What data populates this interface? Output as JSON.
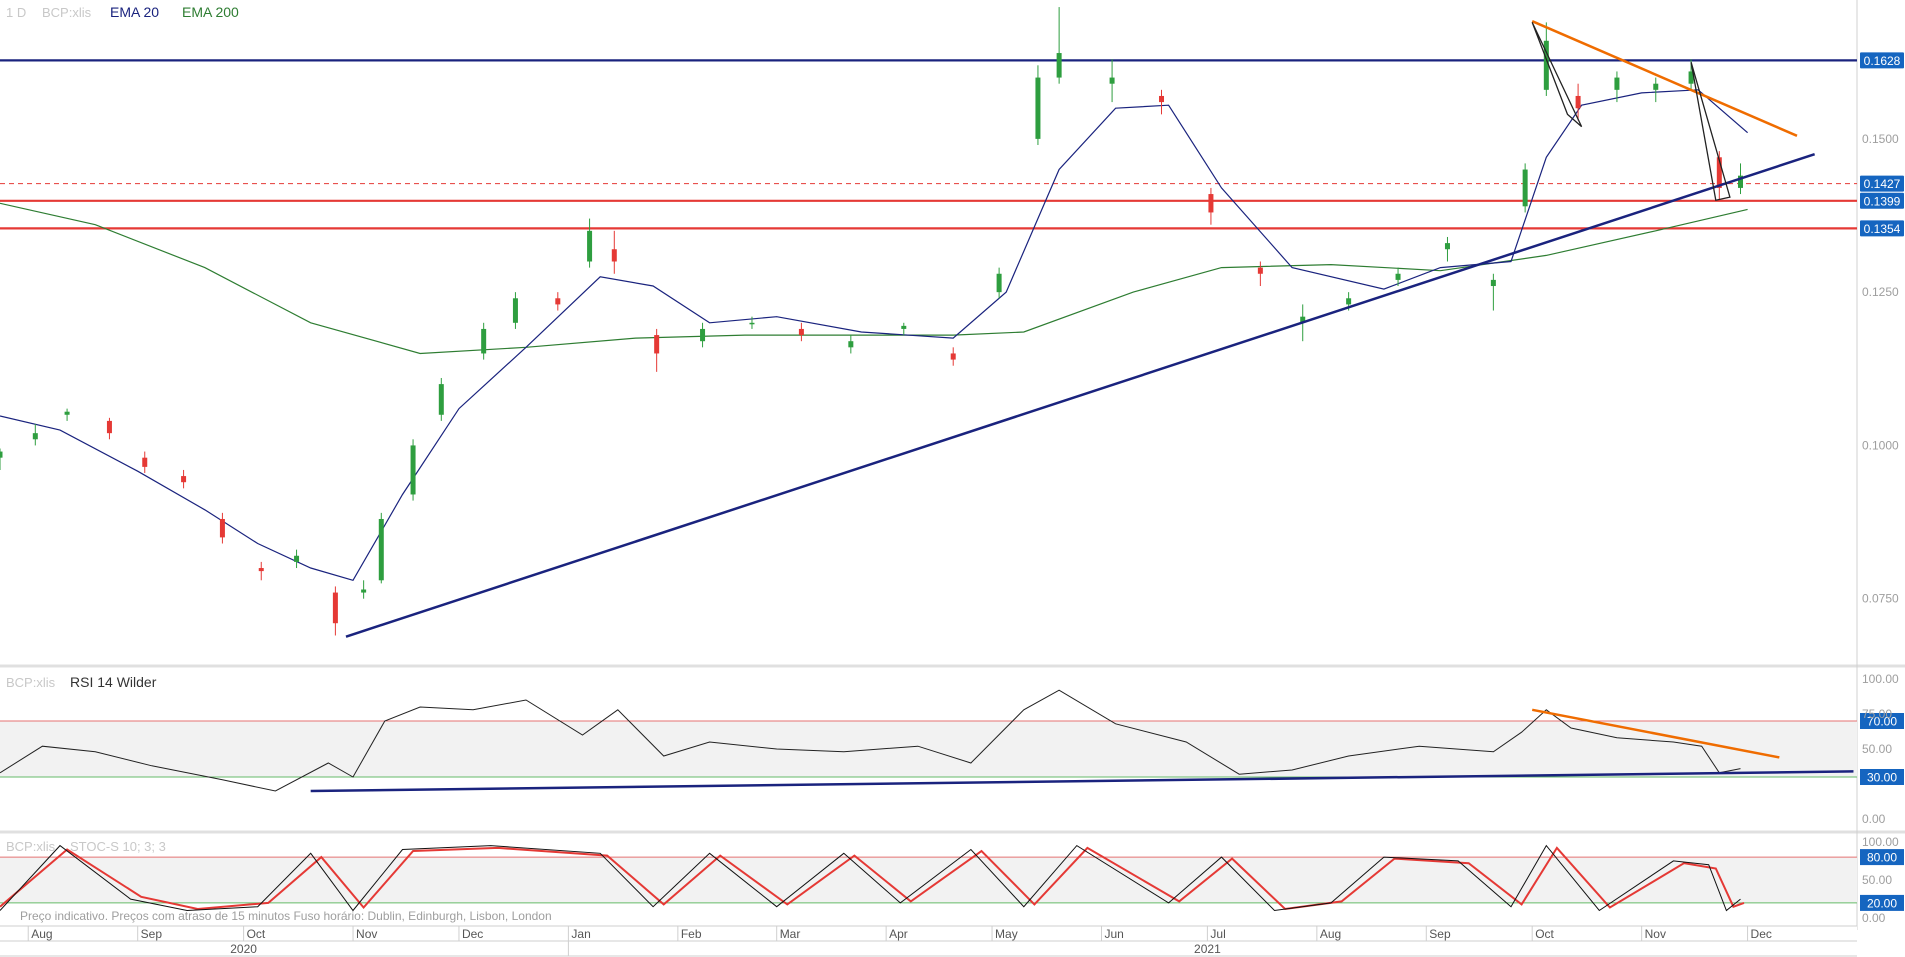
{
  "chart_data": {
    "type": "candlestick",
    "price_pane": {
      "legend": {
        "interval": "1 D",
        "symbol": "BCP:xlis",
        "ema20": "EMA 20",
        "ema200": "EMA 200"
      },
      "ylim": [
        0.065,
        0.172
      ],
      "y_ticks": [
        "0.1500",
        "0.1250",
        "0.1000",
        "0.0750"
      ],
      "levels": [
        {
          "label": "0.1628",
          "value": 0.1628,
          "color": "#1a237e",
          "style": "solid"
        },
        {
          "label": "0.1427",
          "value": 0.1427,
          "color": "#e53935",
          "style": "dashed"
        },
        {
          "label": "0.1399",
          "value": 0.1399,
          "color": "#e53935",
          "style": "solid"
        },
        {
          "label": "0.1354",
          "value": 0.1354,
          "color": "#e53935",
          "style": "solid"
        }
      ],
      "ema20": [
        [
          "2020-07-24",
          0.1048
        ],
        [
          "2020-08-10",
          0.1025
        ],
        [
          "2020-09-01",
          0.0958
        ],
        [
          "2020-09-20",
          0.0895
        ],
        [
          "2020-10-05",
          0.084
        ],
        [
          "2020-10-20",
          0.08
        ],
        [
          "2020-11-01",
          0.078
        ],
        [
          "2020-11-15",
          0.092
        ],
        [
          "2020-12-01",
          0.106
        ],
        [
          "2020-12-20",
          0.116
        ],
        [
          "2021-01-10",
          0.1275
        ],
        [
          "2021-01-25",
          0.126
        ],
        [
          "2021-02-10",
          0.12
        ],
        [
          "2021-03-01",
          0.121
        ],
        [
          "2021-03-25",
          0.1185
        ],
        [
          "2021-04-20",
          0.1175
        ],
        [
          "2021-05-05",
          0.125
        ],
        [
          "2021-05-20",
          0.145
        ],
        [
          "2021-06-05",
          0.155
        ],
        [
          "2021-06-20",
          0.1555
        ],
        [
          "2021-07-05",
          0.142
        ],
        [
          "2021-07-25",
          0.129
        ],
        [
          "2021-08-20",
          0.1255
        ],
        [
          "2021-09-05",
          0.129
        ],
        [
          "2021-09-25",
          0.13
        ],
        [
          "2021-10-05",
          0.147
        ],
        [
          "2021-10-15",
          0.1555
        ],
        [
          "2021-11-01",
          0.1575
        ],
        [
          "2021-11-17",
          0.158
        ],
        [
          "2021-12-01",
          0.151
        ]
      ],
      "ema200": [
        [
          "2020-07-24",
          0.1395
        ],
        [
          "2020-08-20",
          0.136
        ],
        [
          "2020-09-20",
          0.129
        ],
        [
          "2020-10-20",
          0.12
        ],
        [
          "2020-11-20",
          0.115
        ],
        [
          "2020-12-20",
          0.116
        ],
        [
          "2021-01-20",
          0.1175
        ],
        [
          "2021-02-20",
          0.118
        ],
        [
          "2021-03-20",
          0.118
        ],
        [
          "2021-04-20",
          0.118
        ],
        [
          "2021-05-10",
          0.1185
        ],
        [
          "2021-06-10",
          0.125
        ],
        [
          "2021-07-05",
          0.129
        ],
        [
          "2021-08-05",
          0.1295
        ],
        [
          "2021-09-05",
          0.1285
        ],
        [
          "2021-10-05",
          0.131
        ],
        [
          "2021-11-05",
          0.135
        ],
        [
          "2021-12-01",
          0.1385
        ]
      ],
      "trendlines": [
        {
          "color": "#1a237e",
          "from": [
            "2020-10-30",
            0.0688
          ],
          "to": [
            "2021-12-20",
            0.1475
          ]
        },
        {
          "color": "#ef6c00",
          "from": [
            "2021-10-01",
            0.1692
          ],
          "to": [
            "2021-12-15",
            0.1505
          ]
        }
      ],
      "pattern_triangles": [
        [
          [
            "2021-10-01",
            0.169
          ],
          [
            "2021-10-15",
            0.152
          ],
          [
            "2021-10-11",
            0.154
          ]
        ],
        [
          [
            "2021-11-15",
            0.1625
          ],
          [
            "2021-11-26",
            0.1405
          ],
          [
            "2021-11-22",
            0.14
          ]
        ]
      ],
      "candles_ohlc": [
        [
          "2020-07-24",
          0.098,
          0.0995,
          0.096,
          0.099
        ],
        [
          "2020-08-03",
          0.101,
          0.1035,
          0.1,
          0.102
        ],
        [
          "2020-08-12",
          0.105,
          0.106,
          0.104,
          0.1055
        ],
        [
          "2020-08-24",
          0.104,
          0.1045,
          0.101,
          0.102
        ],
        [
          "2020-09-03",
          0.098,
          0.099,
          0.0955,
          0.0965
        ],
        [
          "2020-09-14",
          0.095,
          0.096,
          0.093,
          0.094
        ],
        [
          "2020-09-25",
          0.088,
          0.089,
          0.084,
          0.085
        ],
        [
          "2020-10-06",
          0.08,
          0.081,
          0.078,
          0.0795
        ],
        [
          "2020-10-16",
          0.081,
          0.083,
          0.08,
          0.082
        ],
        [
          "2020-10-27",
          0.076,
          0.077,
          0.069,
          0.071
        ],
        [
          "2020-11-04",
          0.076,
          0.078,
          0.075,
          0.0765
        ],
        [
          "2020-11-09",
          0.078,
          0.089,
          0.0775,
          0.088
        ],
        [
          "2020-11-18",
          0.092,
          0.101,
          0.091,
          0.1
        ],
        [
          "2020-11-26",
          0.105,
          0.111,
          0.104,
          0.11
        ],
        [
          "2020-12-08",
          0.115,
          0.12,
          0.114,
          0.119
        ],
        [
          "2020-12-17",
          0.12,
          0.125,
          0.119,
          0.124
        ],
        [
          "2020-12-29",
          0.124,
          0.125,
          0.122,
          0.123
        ],
        [
          "2021-01-07",
          0.13,
          0.137,
          0.129,
          0.135
        ],
        [
          "2021-01-14",
          0.132,
          0.135,
          0.128,
          0.13
        ],
        [
          "2021-01-26",
          0.118,
          0.119,
          0.112,
          0.115
        ],
        [
          "2021-02-08",
          0.117,
          0.12,
          0.116,
          0.119
        ],
        [
          "2021-02-22",
          0.12,
          0.121,
          0.119,
          0.12
        ],
        [
          "2021-03-08",
          0.119,
          0.12,
          0.117,
          0.118
        ],
        [
          "2021-03-22",
          0.116,
          0.118,
          0.115,
          0.117
        ],
        [
          "2021-04-06",
          0.119,
          0.12,
          0.118,
          0.1195
        ],
        [
          "2021-04-20",
          0.115,
          0.116,
          0.113,
          0.114
        ],
        [
          "2021-05-03",
          0.125,
          0.129,
          0.124,
          0.128
        ],
        [
          "2021-05-14",
          0.15,
          0.162,
          0.149,
          0.16
        ],
        [
          "2021-05-20",
          0.16,
          0.1715,
          0.159,
          0.164
        ],
        [
          "2021-06-04",
          0.159,
          0.163,
          0.156,
          0.16
        ],
        [
          "2021-06-18",
          0.157,
          0.158,
          0.154,
          0.156
        ],
        [
          "2021-07-02",
          0.141,
          0.142,
          0.136,
          0.138
        ],
        [
          "2021-07-16",
          0.129,
          0.13,
          0.126,
          0.128
        ],
        [
          "2021-07-28",
          0.12,
          0.123,
          0.117,
          0.121
        ],
        [
          "2021-08-10",
          0.123,
          0.125,
          0.122,
          0.124
        ],
        [
          "2021-08-24",
          0.127,
          0.129,
          0.126,
          0.128
        ],
        [
          "2021-09-07",
          0.132,
          0.134,
          0.13,
          0.133
        ],
        [
          "2021-09-20",
          0.126,
          0.128,
          0.122,
          0.127
        ],
        [
          "2021-09-29",
          0.139,
          0.146,
          0.138,
          0.145
        ],
        [
          "2021-10-05",
          0.158,
          0.169,
          0.157,
          0.166
        ],
        [
          "2021-10-14",
          0.157,
          0.159,
          0.153,
          0.155
        ],
        [
          "2021-10-25",
          0.158,
          0.161,
          0.156,
          0.16
        ],
        [
          "2021-11-05",
          0.158,
          0.16,
          0.156,
          0.159
        ],
        [
          "2021-11-15",
          0.159,
          0.163,
          0.158,
          0.161
        ],
        [
          "2021-11-23",
          0.147,
          0.148,
          0.14,
          0.142
        ],
        [
          "2021-11-29",
          0.142,
          0.146,
          0.141,
          0.144
        ]
      ]
    },
    "rsi_pane": {
      "title_symbol": "BCP:xlis",
      "title": "RSI 14 Wilder",
      "ylim": [
        -5,
        105
      ],
      "y_ticks": [
        "100.00",
        "75.00",
        "50.00",
        "0.00"
      ],
      "levels": [
        {
          "label": "70.00",
          "value": 70,
          "color": "#e57373"
        },
        {
          "label": "30.00",
          "value": 30,
          "color": "#66bb6a"
        }
      ],
      "series": [
        [
          "2020-07-24",
          33
        ],
        [
          "2020-08-05",
          52
        ],
        [
          "2020-08-20",
          48
        ],
        [
          "2020-09-05",
          38
        ],
        [
          "2020-09-25",
          28
        ],
        [
          "2020-10-10",
          20
        ],
        [
          "2020-10-25",
          40
        ],
        [
          "2020-11-01",
          30
        ],
        [
          "2020-11-10",
          70
        ],
        [
          "2020-11-20",
          80
        ],
        [
          "2020-12-05",
          78
        ],
        [
          "2020-12-20",
          85
        ],
        [
          "2021-01-05",
          60
        ],
        [
          "2021-01-15",
          78
        ],
        [
          "2021-01-28",
          45
        ],
        [
          "2021-02-10",
          55
        ],
        [
          "2021-03-01",
          50
        ],
        [
          "2021-03-20",
          48
        ],
        [
          "2021-04-10",
          52
        ],
        [
          "2021-04-25",
          40
        ],
        [
          "2021-05-10",
          78
        ],
        [
          "2021-05-20",
          92
        ],
        [
          "2021-06-05",
          68
        ],
        [
          "2021-06-25",
          55
        ],
        [
          "2021-07-10",
          32
        ],
        [
          "2021-07-25",
          35
        ],
        [
          "2021-08-10",
          45
        ],
        [
          "2021-08-30",
          52
        ],
        [
          "2021-09-20",
          48
        ],
        [
          "2021-09-28",
          62
        ],
        [
          "2021-10-05",
          78
        ],
        [
          "2021-10-12",
          65
        ],
        [
          "2021-10-25",
          58
        ],
        [
          "2021-11-10",
          55
        ],
        [
          "2021-11-18",
          52
        ],
        [
          "2021-11-23",
          33
        ],
        [
          "2021-11-29",
          36
        ]
      ],
      "trendlines": [
        {
          "color": "#ef6c00",
          "from": [
            "2021-10-01",
            78
          ],
          "to": [
            "2021-12-10",
            44
          ]
        },
        {
          "color": "#1a237e",
          "from": [
            "2020-10-20",
            20
          ],
          "to": [
            "2021-12-31",
            34
          ]
        }
      ]
    },
    "stoch_pane": {
      "title_symbol": "BCP:xlis",
      "title": "STOC-S 10; 3; 3",
      "ylim": [
        -5,
        105
      ],
      "y_ticks": [
        "100.00",
        "50.00",
        "0.00"
      ],
      "levels": [
        {
          "label": "80.00",
          "value": 80,
          "color": "#e57373"
        },
        {
          "label": "20.00",
          "value": 20,
          "color": "#66bb6a"
        }
      ],
      "k": [
        [
          "2020-07-24",
          10
        ],
        [
          "2020-08-10",
          95
        ],
        [
          "2020-08-30",
          25
        ],
        [
          "2020-09-15",
          10
        ],
        [
          "2020-10-05",
          15
        ],
        [
          "2020-10-20",
          85
        ],
        [
          "2020-11-01",
          10
        ],
        [
          "2020-11-15",
          90
        ],
        [
          "2020-12-10",
          95
        ],
        [
          "2021-01-10",
          85
        ],
        [
          "2021-01-25",
          15
        ],
        [
          "2021-02-10",
          85
        ],
        [
          "2021-03-01",
          15
        ],
        [
          "2021-03-20",
          85
        ],
        [
          "2021-04-05",
          20
        ],
        [
          "2021-04-25",
          90
        ],
        [
          "2021-05-10",
          15
        ],
        [
          "2021-05-25",
          95
        ],
        [
          "2021-06-20",
          20
        ],
        [
          "2021-07-05",
          80
        ],
        [
          "2021-07-20",
          10
        ],
        [
          "2021-08-05",
          20
        ],
        [
          "2021-08-20",
          80
        ],
        [
          "2021-09-10",
          75
        ],
        [
          "2021-09-25",
          15
        ],
        [
          "2021-10-05",
          95
        ],
        [
          "2021-10-20",
          10
        ],
        [
          "2021-11-10",
          75
        ],
        [
          "2021-11-20",
          70
        ],
        [
          "2021-11-25",
          10
        ],
        [
          "2021-11-29",
          25
        ]
      ],
      "d": [
        [
          "2020-07-24",
          15
        ],
        [
          "2020-08-12",
          90
        ],
        [
          "2020-09-02",
          28
        ],
        [
          "2020-09-18",
          12
        ],
        [
          "2020-10-08",
          20
        ],
        [
          "2020-10-23",
          80
        ],
        [
          "2020-11-04",
          14
        ],
        [
          "2020-11-18",
          88
        ],
        [
          "2020-12-12",
          92
        ],
        [
          "2021-01-12",
          82
        ],
        [
          "2021-01-28",
          18
        ],
        [
          "2021-02-13",
          82
        ],
        [
          "2021-03-04",
          18
        ],
        [
          "2021-03-23",
          82
        ],
        [
          "2021-04-08",
          22
        ],
        [
          "2021-04-28",
          88
        ],
        [
          "2021-05-13",
          18
        ],
        [
          "2021-05-28",
          92
        ],
        [
          "2021-06-23",
          22
        ],
        [
          "2021-07-08",
          78
        ],
        [
          "2021-07-23",
          12
        ],
        [
          "2021-08-08",
          22
        ],
        [
          "2021-08-23",
          78
        ],
        [
          "2021-09-13",
          72
        ],
        [
          "2021-09-28",
          18
        ],
        [
          "2021-10-08",
          92
        ],
        [
          "2021-10-23",
          14
        ],
        [
          "2021-11-13",
          72
        ],
        [
          "2021-11-22",
          65
        ],
        [
          "2021-11-27",
          15
        ],
        [
          "2021-11-30",
          20
        ]
      ]
    },
    "time_axis": {
      "range": [
        "2020-07-24",
        "2022-01-01"
      ],
      "months": [
        {
          "label": "Aug",
          "date": "2020-08-01"
        },
        {
          "label": "Sep",
          "date": "2020-09-01"
        },
        {
          "label": "Oct",
          "date": "2020-10-01"
        },
        {
          "label": "Nov",
          "date": "2020-11-01"
        },
        {
          "label": "Dec",
          "date": "2020-12-01"
        },
        {
          "label": "Jan",
          "date": "2021-01-01"
        },
        {
          "label": "Feb",
          "date": "2021-02-01"
        },
        {
          "label": "Mar",
          "date": "2021-03-01"
        },
        {
          "label": "Apr",
          "date": "2021-04-01"
        },
        {
          "label": "May",
          "date": "2021-05-01"
        },
        {
          "label": "Jun",
          "date": "2021-06-01"
        },
        {
          "label": "Jul",
          "date": "2021-07-01"
        },
        {
          "label": "Aug",
          "date": "2021-08-01"
        },
        {
          "label": "Sep",
          "date": "2021-09-01"
        },
        {
          "label": "Oct",
          "date": "2021-10-01"
        },
        {
          "label": "Nov",
          "date": "2021-11-01"
        },
        {
          "label": "Dec",
          "date": "2021-12-01"
        }
      ],
      "years": [
        {
          "label": "2020",
          "date": "2020-10-01"
        },
        {
          "label": "2021",
          "date": "2021-07-01"
        }
      ],
      "year_divider": "2021-01-01"
    },
    "footer_note": "Preço indicativo. Preços com atraso de 15 minutos   Fuso horário: Dublin, Edinburgh, Lisbon, London"
  },
  "colors": {
    "up": "#2e9e3f",
    "down": "#e53935",
    "ema20": "#1a237e",
    "ema200": "#2e7d32",
    "price_line": "#1a237e",
    "band_fill": "#f2f2f2",
    "label_bg": "#1565c0",
    "axis_text": "#9e9e9e",
    "pane_title": "#c8c8c8"
  }
}
